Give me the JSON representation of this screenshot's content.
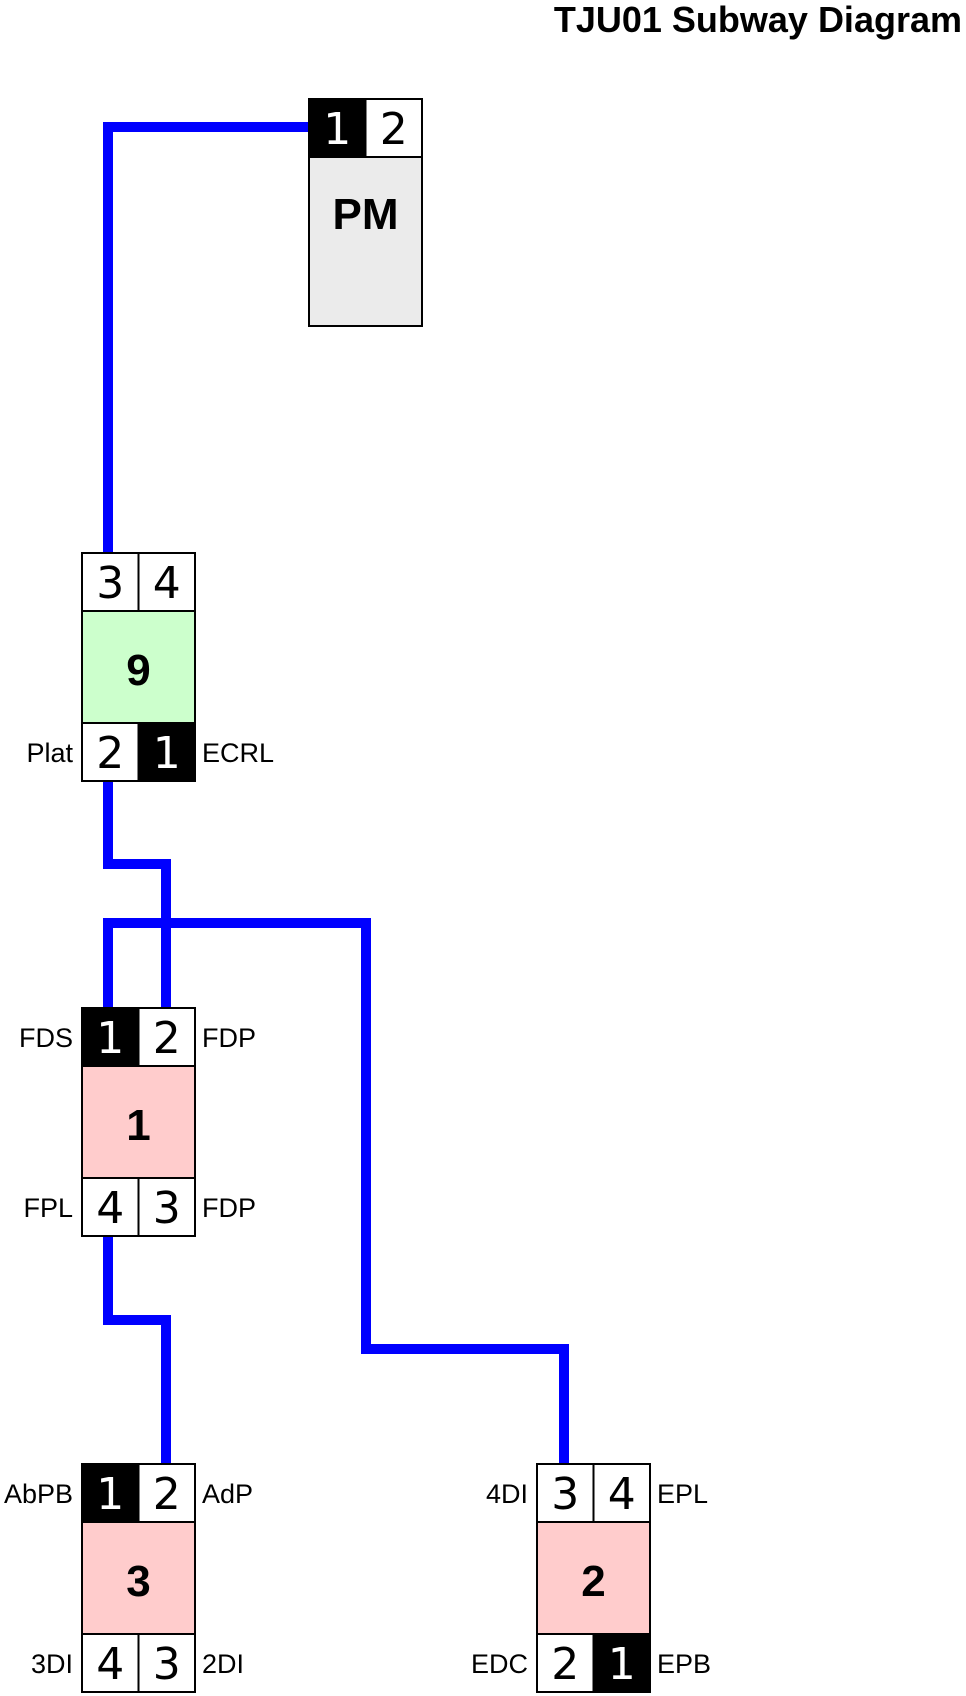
{
  "title": "TJU01 Subway Diagram",
  "colors": {
    "line": "#0000ff",
    "port_bg": "#ffffff",
    "port_active_bg": "#000000",
    "border": "#000000",
    "pm_fill": "#ebebeb",
    "green_fill": "#ccffcc",
    "pink_fill": "#ffcccc"
  },
  "modules": [
    {
      "id": "PM",
      "label": "PM",
      "fill": "#ebebeb",
      "top_ports": [
        {
          "num": "1",
          "active": true,
          "label": ""
        },
        {
          "num": "2",
          "active": false,
          "label": ""
        }
      ],
      "bottom_ports": []
    },
    {
      "id": "9",
      "label": "9",
      "fill": "#ccffcc",
      "top_ports": [
        {
          "num": "3",
          "active": false,
          "label": ""
        },
        {
          "num": "4",
          "active": false,
          "label": ""
        }
      ],
      "bottom_ports": [
        {
          "num": "2",
          "active": false,
          "label": "Plat"
        },
        {
          "num": "1",
          "active": true,
          "label": "ECRL"
        }
      ]
    },
    {
      "id": "1",
      "label": "1",
      "fill": "#ffcccc",
      "top_ports": [
        {
          "num": "1",
          "active": true,
          "label": "FDS"
        },
        {
          "num": "2",
          "active": false,
          "label": "FDP"
        }
      ],
      "bottom_ports": [
        {
          "num": "4",
          "active": false,
          "label": "FPL"
        },
        {
          "num": "3",
          "active": false,
          "label": "FDP"
        }
      ]
    },
    {
      "id": "3",
      "label": "3",
      "fill": "#ffcccc",
      "top_ports": [
        {
          "num": "1",
          "active": true,
          "label": "AbPB"
        },
        {
          "num": "2",
          "active": false,
          "label": "AdP"
        }
      ],
      "bottom_ports": [
        {
          "num": "4",
          "active": false,
          "label": "3DI"
        },
        {
          "num": "3",
          "active": false,
          "label": "2DI"
        }
      ]
    },
    {
      "id": "2",
      "label": "2",
      "fill": "#ffcccc",
      "top_ports": [
        {
          "num": "3",
          "active": false,
          "label": "4DI"
        },
        {
          "num": "4",
          "active": false,
          "label": "EPL"
        }
      ],
      "bottom_ports": [
        {
          "num": "2",
          "active": false,
          "label": "EDC"
        },
        {
          "num": "1",
          "active": true,
          "label": "EPB"
        }
      ]
    }
  ],
  "connections": [
    {
      "from": "PM.1",
      "to": "9.3"
    },
    {
      "from": "9.2",
      "to": "1.2"
    },
    {
      "from": "1.1",
      "to": "2.3"
    },
    {
      "from": "1.4",
      "to": "3.2"
    }
  ]
}
